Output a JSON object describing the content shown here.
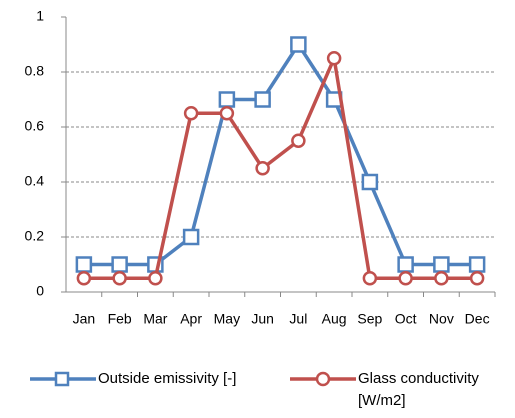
{
  "chart_data": {
    "type": "line",
    "categories": [
      "Jan",
      "Feb",
      "Mar",
      "Apr",
      "May",
      "Jun",
      "Jul",
      "Aug",
      "Sep",
      "Oct",
      "Nov",
      "Dec"
    ],
    "series": [
      {
        "name": "Outside emissivity [-]",
        "color": "#4f81bd",
        "marker": "square",
        "values": [
          0.1,
          0.1,
          0.1,
          0.2,
          0.7,
          0.7,
          0.9,
          0.7,
          0.4,
          0.1,
          0.1,
          0.1
        ]
      },
      {
        "name": "Glass conductivity [W/m2]",
        "color": "#c0504d",
        "marker": "circle",
        "values": [
          0.05,
          0.05,
          0.05,
          0.65,
          0.65,
          0.45,
          0.55,
          0.85,
          0.05,
          0.05,
          0.05,
          0.05
        ]
      }
    ],
    "ylim": [
      0,
      1
    ],
    "yticks": [
      0,
      0.2,
      0.4,
      0.6,
      0.8,
      1
    ],
    "grid": true
  }
}
